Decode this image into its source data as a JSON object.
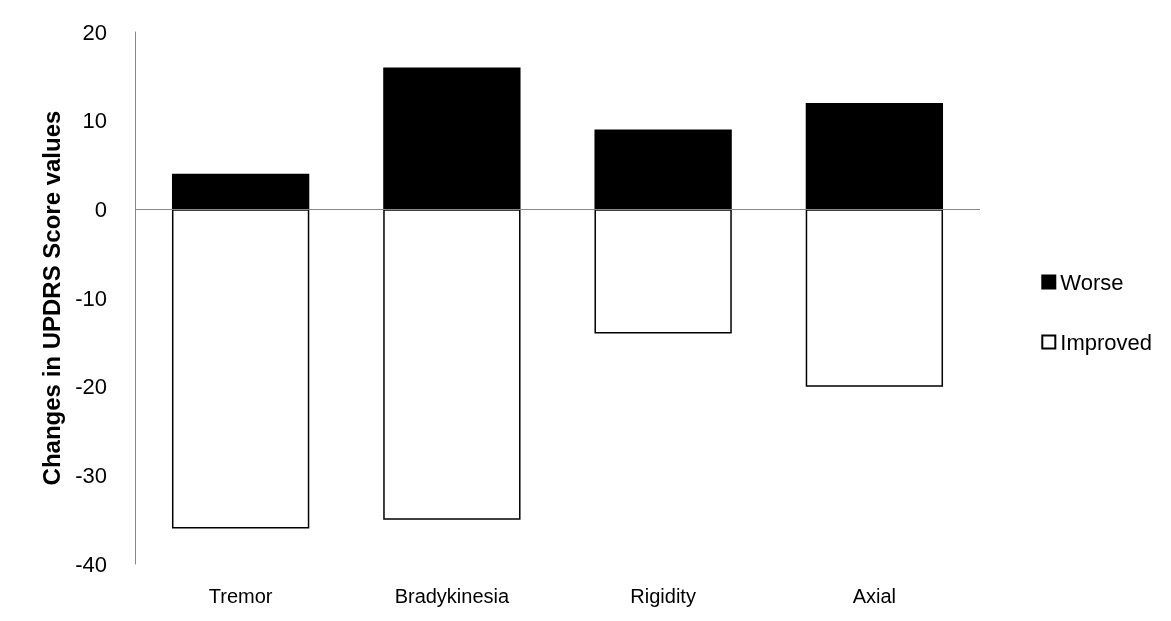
{
  "chart_data": {
    "type": "bar",
    "ylabel": "Changes in UPDRS Score values",
    "categories": [
      "Tremor",
      "Bradykinesia",
      "Rigidity",
      "Axial"
    ],
    "series": [
      {
        "name": "Worse",
        "color": "#000000",
        "values": [
          4,
          16,
          9,
          12
        ]
      },
      {
        "name": "Improved",
        "color": "#ffffff",
        "values": [
          -36,
          -35,
          -14,
          -20
        ]
      }
    ],
    "stacked": true,
    "ylim": [
      -40,
      20
    ],
    "yticks": [
      -40,
      -30,
      -20,
      -10,
      0,
      10,
      20
    ],
    "grid": false,
    "legend": "right",
    "ref_lines": [
      {
        "axis": "y",
        "value": 0,
        "color": "#888888"
      }
    ]
  }
}
